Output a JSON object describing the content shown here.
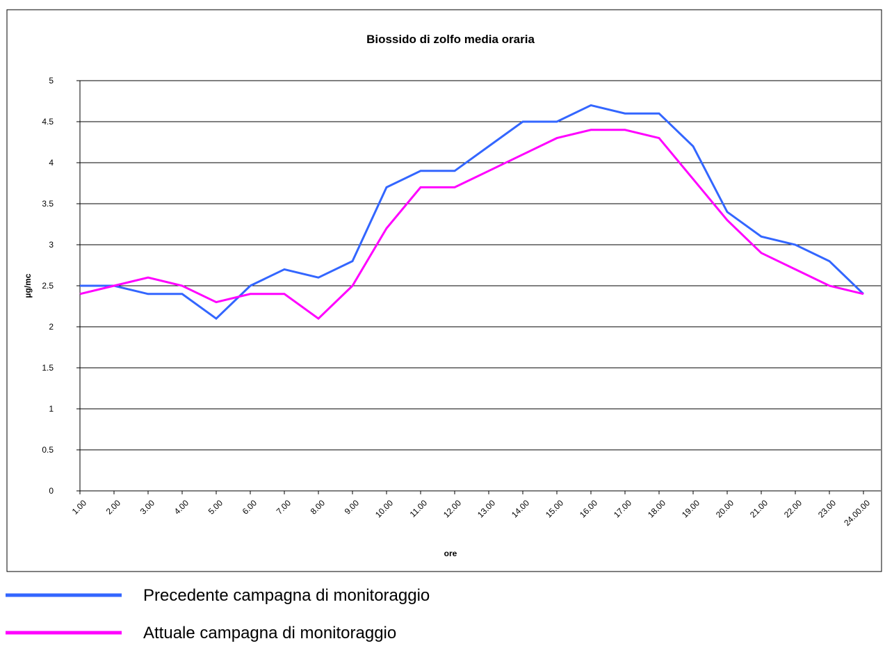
{
  "chart_data": {
    "type": "line",
    "title": "Biossido di zolfo media oraria",
    "xlabel": "ore",
    "ylabel": "µg/mc",
    "categories": [
      "1.00",
      "2.00",
      "3.00",
      "4.00",
      "5.00",
      "6.00",
      "7.00",
      "8.00",
      "9.00",
      "10.00",
      "11.00",
      "12.00",
      "13.00",
      "14.00",
      "15.00",
      "16.00",
      "17.00",
      "18.00",
      "19.00",
      "20.00",
      "21.00",
      "22.00",
      "23.00",
      "24.00.00"
    ],
    "series": [
      {
        "name": "Precedente campagna di monitoraggio",
        "color": "#3366ff",
        "values": [
          2.5,
          2.5,
          2.4,
          2.4,
          2.1,
          2.5,
          2.7,
          2.6,
          2.8,
          3.7,
          3.9,
          3.9,
          4.2,
          4.5,
          4.5,
          4.7,
          4.6,
          4.6,
          4.2,
          3.4,
          3.1,
          3.0,
          2.8,
          2.4
        ]
      },
      {
        "name": "Attuale campagna di monitoraggio",
        "color": "#ff00ff",
        "values": [
          2.4,
          2.5,
          2.6,
          2.5,
          2.3,
          2.4,
          2.4,
          2.1,
          2.5,
          3.2,
          3.7,
          3.7,
          3.9,
          4.1,
          4.3,
          4.4,
          4.4,
          4.3,
          3.8,
          3.3,
          2.9,
          2.7,
          2.5,
          2.4
        ]
      }
    ],
    "ylim": [
      0,
      5
    ],
    "yticks": [
      0,
      0.5,
      1,
      1.5,
      2,
      2.5,
      3,
      3.5,
      4,
      4.5,
      5
    ],
    "grid": true
  }
}
